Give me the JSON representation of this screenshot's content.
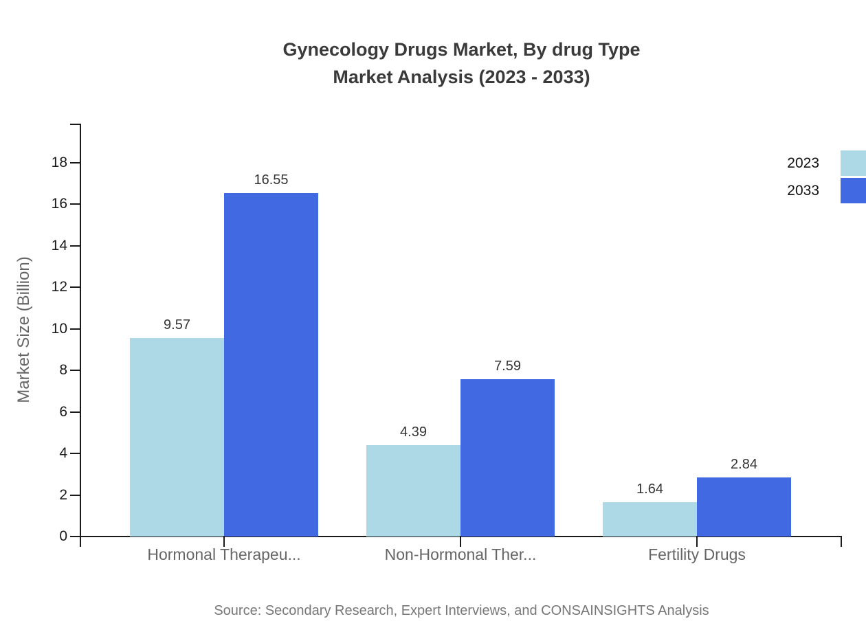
{
  "title": {
    "line1": "Gynecology Drugs Market, By drug Type",
    "line2": "Market Analysis (2023 - 2033)"
  },
  "chart_data": {
    "type": "bar",
    "title": "Gynecology Drugs Market, By drug Type Market Analysis (2023 - 2033)",
    "categories": [
      "Hormonal Therapeu...",
      "Non-Hormonal Ther...",
      "Fertility Drugs"
    ],
    "series": [
      {
        "name": "2023",
        "color": "#ADD8E6",
        "values": [
          9.57,
          4.39,
          1.64
        ]
      },
      {
        "name": "2033",
        "color": "#4169E1",
        "values": [
          16.55,
          7.59,
          2.84
        ]
      }
    ],
    "value_labels": [
      "9.57",
      "16.55",
      "4.39",
      "7.59",
      "1.64",
      "2.84"
    ],
    "xlabel": "",
    "ylabel": "Market Size (Billion)",
    "ylim": [
      0,
      18
    ],
    "yticks": [
      0,
      2,
      4,
      6,
      8,
      10,
      12,
      14,
      16,
      18
    ],
    "grid": false,
    "legend_position": "top-right"
  },
  "legend": {
    "items": [
      {
        "label": "2023",
        "color": "#ADD8E6"
      },
      {
        "label": "2033",
        "color": "#4169E1"
      }
    ]
  },
  "source": "Source: Secondary Research, Expert Interviews, and CONSAINSIGHTS Analysis"
}
